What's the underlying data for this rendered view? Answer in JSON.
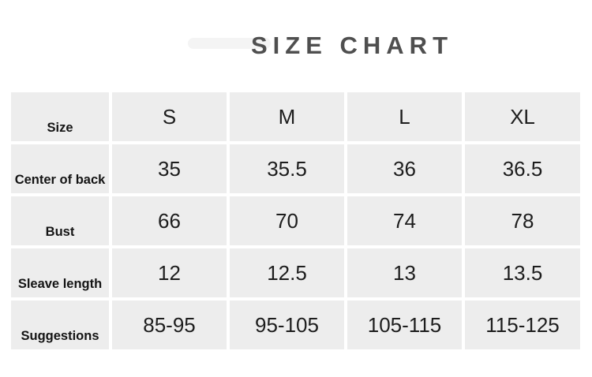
{
  "title": "SIZE CHART",
  "table": {
    "corner_label": "Size",
    "columns": [
      "S",
      "M",
      "L",
      "XL"
    ],
    "rows": [
      {
        "label": "Center of back",
        "values": [
          "35",
          "35.5",
          "36",
          "36.5"
        ]
      },
      {
        "label": "Bust",
        "values": [
          "66",
          "70",
          "74",
          "78"
        ]
      },
      {
        "label": "Sleave length",
        "values": [
          "12",
          "12.5",
          "13",
          "13.5"
        ]
      },
      {
        "label": "Suggestions",
        "values": [
          "85-95",
          "95-105",
          "105-115",
          "115-125"
        ]
      }
    ]
  },
  "colors": {
    "page_background": "#ffffff",
    "cell_background": "#ededed",
    "title_text": "#4f4f4f",
    "cell_text": "#1d1d1d",
    "label_text": "#141414"
  },
  "chart_data": {
    "type": "table",
    "title": "SIZE CHART",
    "columns": [
      "Size",
      "S",
      "M",
      "L",
      "XL"
    ],
    "rows": [
      [
        "Center of back",
        "35",
        "35.5",
        "36",
        "36.5"
      ],
      [
        "Bust",
        "66",
        "70",
        "74",
        "78"
      ],
      [
        "Sleave length",
        "12",
        "12.5",
        "13",
        "13.5"
      ],
      [
        "Suggestions",
        "85-95",
        "95-105",
        "105-115",
        "115-125"
      ]
    ]
  }
}
